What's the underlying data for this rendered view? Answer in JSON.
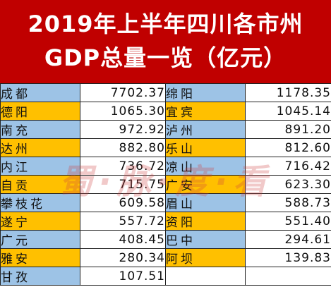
{
  "title": {
    "line1": "2019年上半年四川各市州",
    "line2": "GDP总量一览（亿元）"
  },
  "colors": {
    "header_bg": "#c00000",
    "header_text": "#ffffff",
    "name_blue": "#9dc3e6",
    "name_gold": "#ffc000"
  },
  "table": {
    "rows": [
      {
        "left_name": "成都",
        "left_value": "7702.37",
        "right_name": "绵阳",
        "right_value": "1178.35",
        "color": "blue"
      },
      {
        "left_name": "德阳",
        "left_value": "1065.30",
        "right_name": "宜宾",
        "right_value": "1045.14",
        "color": "gold"
      },
      {
        "left_name": "南充",
        "left_value": "972.92",
        "right_name": "泸州",
        "right_value": "891.20",
        "color": "blue"
      },
      {
        "left_name": "达州",
        "left_value": "882.80",
        "right_name": "乐山",
        "right_value": "812.60",
        "color": "gold"
      },
      {
        "left_name": "内江",
        "left_value": "736.72",
        "right_name": "凉山",
        "right_value": "716.42",
        "color": "blue"
      },
      {
        "left_name": "自贡",
        "left_value": "715.75",
        "right_name": "广安",
        "right_value": "623.30",
        "color": "gold"
      },
      {
        "left_name": "攀枝花",
        "left_value": "609.58",
        "right_name": "眉山",
        "right_value": "588.73",
        "color": "blue"
      },
      {
        "left_name": "遂宁",
        "left_value": "557.72",
        "right_name": "资阳",
        "right_value": "551.40",
        "color": "gold"
      },
      {
        "left_name": "广元",
        "left_value": "408.45",
        "right_name": "巴中",
        "right_value": "294.61",
        "color": "blue"
      },
      {
        "left_name": "雅安",
        "left_value": "280.34",
        "right_name": "阿坝",
        "right_value": "139.83",
        "color": "gold"
      },
      {
        "left_name": "甘孜",
        "left_value": "107.51",
        "right_name": "",
        "right_value": "",
        "color": "blue"
      }
    ]
  },
  "watermark": {
    "text": "蜀·脉·度·看"
  }
}
